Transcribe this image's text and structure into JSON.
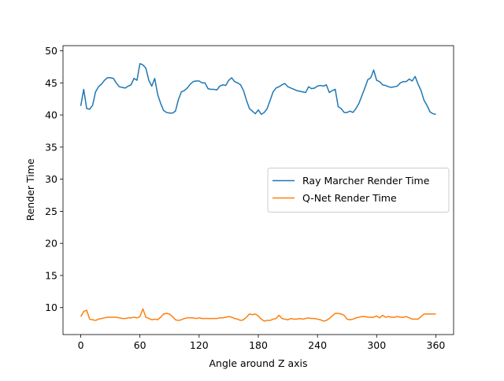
{
  "chart_data": {
    "type": "line",
    "x_label": "Angle around Z axis",
    "y_label": "Render Time",
    "x": [
      0,
      3,
      6,
      9,
      12,
      15,
      18,
      21,
      24,
      27,
      30,
      33,
      36,
      39,
      42,
      45,
      48,
      51,
      54,
      57,
      60,
      63,
      66,
      69,
      72,
      75,
      78,
      81,
      84,
      87,
      90,
      93,
      96,
      99,
      102,
      105,
      108,
      111,
      114,
      117,
      120,
      123,
      126,
      129,
      132,
      135,
      138,
      141,
      144,
      147,
      150,
      153,
      156,
      159,
      162,
      165,
      168,
      171,
      174,
      177,
      180,
      183,
      186,
      189,
      192,
      195,
      198,
      201,
      204,
      207,
      210,
      213,
      216,
      219,
      222,
      225,
      228,
      231,
      234,
      237,
      240,
      243,
      246,
      249,
      252,
      255,
      258,
      261,
      264,
      267,
      270,
      273,
      276,
      279,
      282,
      285,
      288,
      291,
      294,
      297,
      300,
      303,
      306,
      309,
      312,
      315,
      318,
      321,
      324,
      327,
      330,
      333,
      336,
      339,
      342,
      345,
      348,
      351,
      354,
      357,
      360
    ],
    "series": [
      {
        "name": "Ray Marcher Render Time",
        "color": "#1f77b4",
        "values": [
          41.4,
          44.0,
          41.0,
          40.9,
          41.5,
          43.6,
          44.4,
          44.8,
          45.4,
          45.8,
          45.8,
          45.7,
          45.0,
          44.4,
          44.3,
          44.2,
          44.5,
          44.7,
          45.7,
          45.4,
          48.0,
          47.8,
          47.3,
          45.4,
          44.5,
          45.7,
          43.2,
          41.8,
          40.7,
          40.4,
          40.3,
          40.3,
          40.6,
          42.4,
          43.6,
          43.8,
          44.2,
          44.8,
          45.2,
          45.3,
          45.3,
          45.0,
          45.0,
          44.1,
          44.0,
          44.0,
          43.9,
          44.5,
          44.7,
          44.6,
          45.4,
          45.8,
          45.2,
          45.0,
          44.7,
          43.8,
          42.3,
          41.0,
          40.6,
          40.2,
          40.8,
          40.1,
          40.4,
          41.0,
          42.3,
          43.6,
          44.2,
          44.4,
          44.7,
          44.9,
          44.4,
          44.2,
          44.0,
          43.8,
          43.7,
          43.6,
          43.5,
          44.4,
          44.1,
          44.2,
          44.5,
          44.6,
          44.5,
          44.7,
          43.5,
          43.8,
          44.0,
          41.3,
          41.0,
          40.4,
          40.4,
          40.6,
          40.4,
          41.0,
          41.8,
          43.0,
          44.2,
          45.5,
          45.8,
          47.0,
          45.4,
          45.2,
          44.7,
          44.6,
          44.4,
          44.3,
          44.4,
          44.5,
          45.0,
          45.2,
          45.2,
          45.6,
          45.3,
          46.0,
          44.8,
          43.8,
          42.3,
          41.5,
          40.5,
          40.2,
          40.1
        ]
      },
      {
        "name": "Q-Net Render Time",
        "color": "#ff7f0e",
        "values": [
          8.6,
          9.4,
          9.6,
          8.2,
          8.1,
          8.0,
          8.2,
          8.3,
          8.4,
          8.5,
          8.5,
          8.5,
          8.5,
          8.4,
          8.3,
          8.3,
          8.4,
          8.4,
          8.5,
          8.4,
          8.6,
          9.8,
          8.5,
          8.3,
          8.1,
          8.2,
          8.1,
          8.5,
          9.0,
          9.1,
          9.0,
          8.6,
          8.1,
          8.0,
          8.1,
          8.3,
          8.4,
          8.4,
          8.4,
          8.3,
          8.4,
          8.3,
          8.3,
          8.3,
          8.3,
          8.3,
          8.3,
          8.4,
          8.4,
          8.5,
          8.6,
          8.5,
          8.3,
          8.2,
          8.0,
          8.1,
          8.5,
          9.0,
          8.9,
          9.0,
          8.7,
          8.2,
          7.9,
          8.0,
          8.0,
          8.2,
          8.3,
          8.8,
          8.3,
          8.2,
          8.1,
          8.3,
          8.2,
          8.2,
          8.3,
          8.2,
          8.3,
          8.4,
          8.3,
          8.3,
          8.2,
          8.1,
          7.9,
          8.0,
          8.3,
          8.7,
          9.1,
          9.1,
          9.0,
          8.8,
          8.2,
          8.1,
          8.2,
          8.4,
          8.5,
          8.6,
          8.6,
          8.5,
          8.5,
          8.5,
          8.7,
          8.4,
          8.8,
          8.5,
          8.6,
          8.5,
          8.5,
          8.6,
          8.5,
          8.5,
          8.6,
          8.4,
          8.2,
          8.2,
          8.2,
          8.6,
          9.0,
          9.0,
          9.0,
          9.0,
          9.0
        ]
      }
    ],
    "xlim": [
      -18,
      378
    ],
    "ylim": [
      5.8,
      50.8
    ],
    "xticks": [
      0,
      60,
      120,
      180,
      240,
      300,
      360
    ],
    "yticks": [
      10,
      15,
      20,
      25,
      30,
      35,
      40,
      45,
      50
    ],
    "grid": false,
    "legend": "center right"
  }
}
